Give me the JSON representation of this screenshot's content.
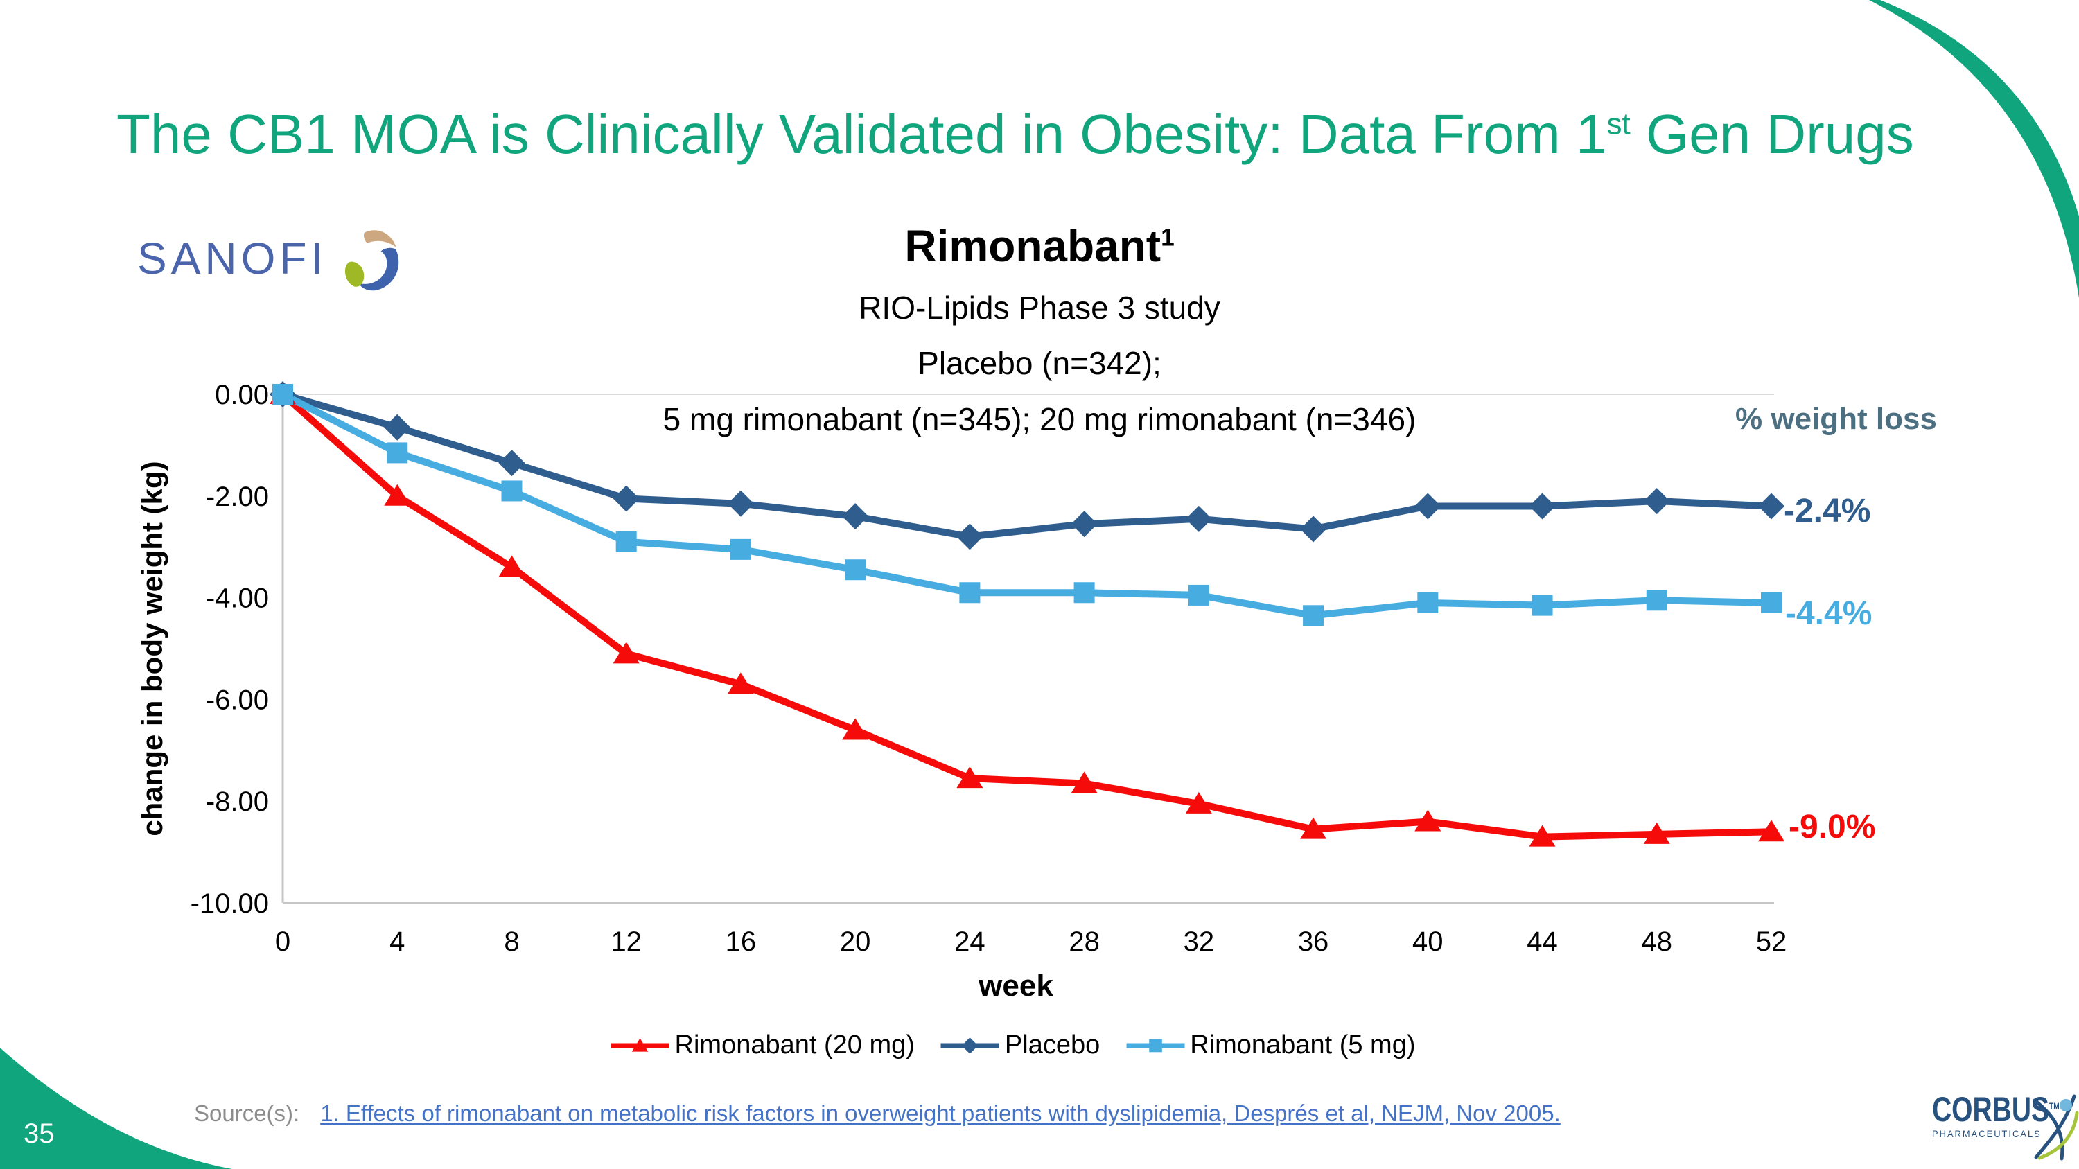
{
  "page": {
    "number": "35"
  },
  "title": {
    "pre": "The CB1 MOA is Clinically Validated in Obesity: Data From 1",
    "sup": "st",
    "post": " Gen Drugs"
  },
  "logos": {
    "sanofi_wordmark": "SANOFI",
    "corbus_name": "CORBUS",
    "corbus_tm": "TM",
    "corbus_sub": "PHARMACEUTICALS"
  },
  "chart_header": {
    "drug": "Rimonabant",
    "drug_sup": "1",
    "line1": "RIO-Lipids Phase 3 study",
    "line2": "Placebo (n=342);",
    "line3": "5 mg rimonabant (n=345); 20 mg rimonabant (n=346)"
  },
  "right_panel": {
    "heading": "% weight loss"
  },
  "source": {
    "prefix": "Source(s):",
    "citation": "1. Effects of rimonabant on metabolic risk factors in overweight patients with dyslipidemia, Després et al, NEJM, Nov 2005."
  },
  "colors": {
    "accent_green": "#10A57C",
    "placebo_blue": "#2F5D8E",
    "rimonabant5_blue": "#47ACE0",
    "rimonabant20_red": "#F60B0B",
    "slate_heading": "#4C7082",
    "link_blue": "#4472C4",
    "axis_gray": "#C6C6C6"
  },
  "chart_data": {
    "type": "line",
    "x": [
      0,
      4,
      8,
      12,
      16,
      20,
      24,
      28,
      32,
      36,
      40,
      44,
      48,
      52
    ],
    "xlabel": "week",
    "ylabel": "change in body weight (kg)",
    "ylim": [
      -10,
      0
    ],
    "xlim": [
      0,
      52
    ],
    "y_tick_labels": [
      "0.00",
      "-2.00",
      "-4.00",
      "-6.00",
      "-8.00",
      "-10.00"
    ],
    "grid": "none",
    "legend_position": "bottom",
    "series": [
      {
        "name": "Rimonabant (20 mg)",
        "marker": "triangle",
        "color": "#F60B0B",
        "end_label": "-9.0%",
        "values": [
          0,
          -2.0,
          -3.4,
          -5.1,
          -5.7,
          -6.6,
          -7.55,
          -7.65,
          -8.05,
          -8.55,
          -8.4,
          -8.7,
          -8.65,
          -8.6
        ]
      },
      {
        "name": "Placebo",
        "marker": "diamond",
        "color": "#2F5D8E",
        "end_label": "-2.4%",
        "values": [
          0,
          -0.65,
          -1.35,
          -2.05,
          -2.15,
          -2.4,
          -2.8,
          -2.55,
          -2.45,
          -2.65,
          -2.2,
          -2.2,
          -2.1,
          -2.2
        ]
      },
      {
        "name": "Rimonabant (5 mg)",
        "marker": "square",
        "color": "#47ACE0",
        "end_label": "-4.4%",
        "values": [
          0,
          -1.15,
          -1.9,
          -2.9,
          -3.05,
          -3.45,
          -3.9,
          -3.9,
          -3.95,
          -4.35,
          -4.1,
          -4.15,
          -4.05,
          -4.1
        ]
      }
    ]
  }
}
